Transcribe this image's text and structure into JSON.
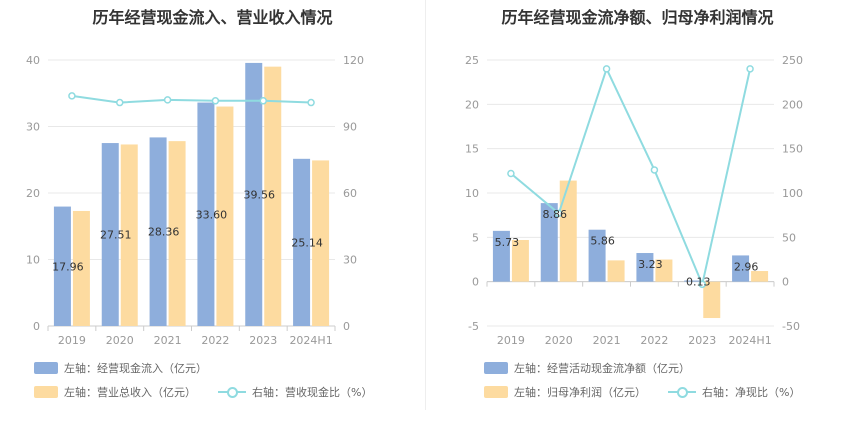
{
  "charts": [
    {
      "title": "历年经营现金流入、营业收入情况",
      "legend": [
        "左轴：经营现金流入（亿元）",
        "左轴：营业总收入（亿元）",
        "右轴：营收现金比（%）"
      ]
    },
    {
      "title": "历年经营现金流净额、归母净利润情况",
      "legend": [
        "左轴：经营活动现金流净额（亿元）",
        "左轴：归母净利润（亿元）",
        "右轴：净现比（%）"
      ]
    }
  ],
  "colors": {
    "bar1": "#8eaedc",
    "bar2": "#fddba0",
    "line": "#8fdbe0",
    "grid": "#e8e8e8",
    "axis": "#cccccc"
  },
  "chart_data": [
    {
      "type": "bar",
      "categories": [
        "2019",
        "2020",
        "2021",
        "2022",
        "2023",
        "2024H1"
      ],
      "series": [
        {
          "name": "左轴：经营现金流入（亿元）",
          "axis": "left",
          "type": "bar",
          "values": [
            17.96,
            27.51,
            28.36,
            33.6,
            39.56,
            25.14
          ],
          "labels": [
            "17.96",
            "27.51",
            "28.36",
            "33.60",
            "39.56",
            "25.14"
          ]
        },
        {
          "name": "左轴：营业总收入（亿元）",
          "axis": "left",
          "type": "bar",
          "values": [
            17.3,
            27.3,
            27.8,
            33.0,
            39.0,
            24.9
          ]
        },
        {
          "name": "右轴：营收现金比（%）",
          "axis": "right",
          "type": "line",
          "values": [
            103.8,
            100.8,
            102.0,
            101.6,
            101.6,
            100.8
          ]
        }
      ],
      "left_axis": {
        "min": 0,
        "max": 40,
        "ticks": [
          "0",
          "10",
          "20",
          "30",
          "40"
        ]
      },
      "right_axis": {
        "min": 0,
        "max": 120,
        "ticks": [
          "0",
          "30",
          "60",
          "90",
          "120"
        ]
      }
    },
    {
      "type": "bar",
      "categories": [
        "2019",
        "2020",
        "2021",
        "2022",
        "2023",
        "2024H1"
      ],
      "series": [
        {
          "name": "左轴：经营活动现金流净额（亿元）",
          "axis": "left",
          "type": "bar",
          "values": [
            5.73,
            8.86,
            5.86,
            3.23,
            0.13,
            2.96
          ],
          "labels": [
            "5.73",
            "8.86",
            "5.86",
            "3.23",
            "0.13",
            "2.96"
          ]
        },
        {
          "name": "左轴：归母净利润（亿元）",
          "axis": "left",
          "type": "bar",
          "values": [
            4.7,
            11.4,
            2.4,
            2.5,
            -4.1,
            1.2
          ]
        },
        {
          "name": "右轴：净现比（%）",
          "axis": "right",
          "type": "line",
          "values": [
            122,
            77,
            240,
            126,
            -3,
            240
          ]
        }
      ],
      "left_axis": {
        "min": -5,
        "max": 25,
        "ticks": [
          "-5",
          "0",
          "5",
          "10",
          "15",
          "20",
          "25"
        ]
      },
      "right_axis": {
        "min": -50,
        "max": 250,
        "ticks": [
          "-50",
          "0",
          "50",
          "100",
          "150",
          "200",
          "250"
        ]
      }
    }
  ]
}
